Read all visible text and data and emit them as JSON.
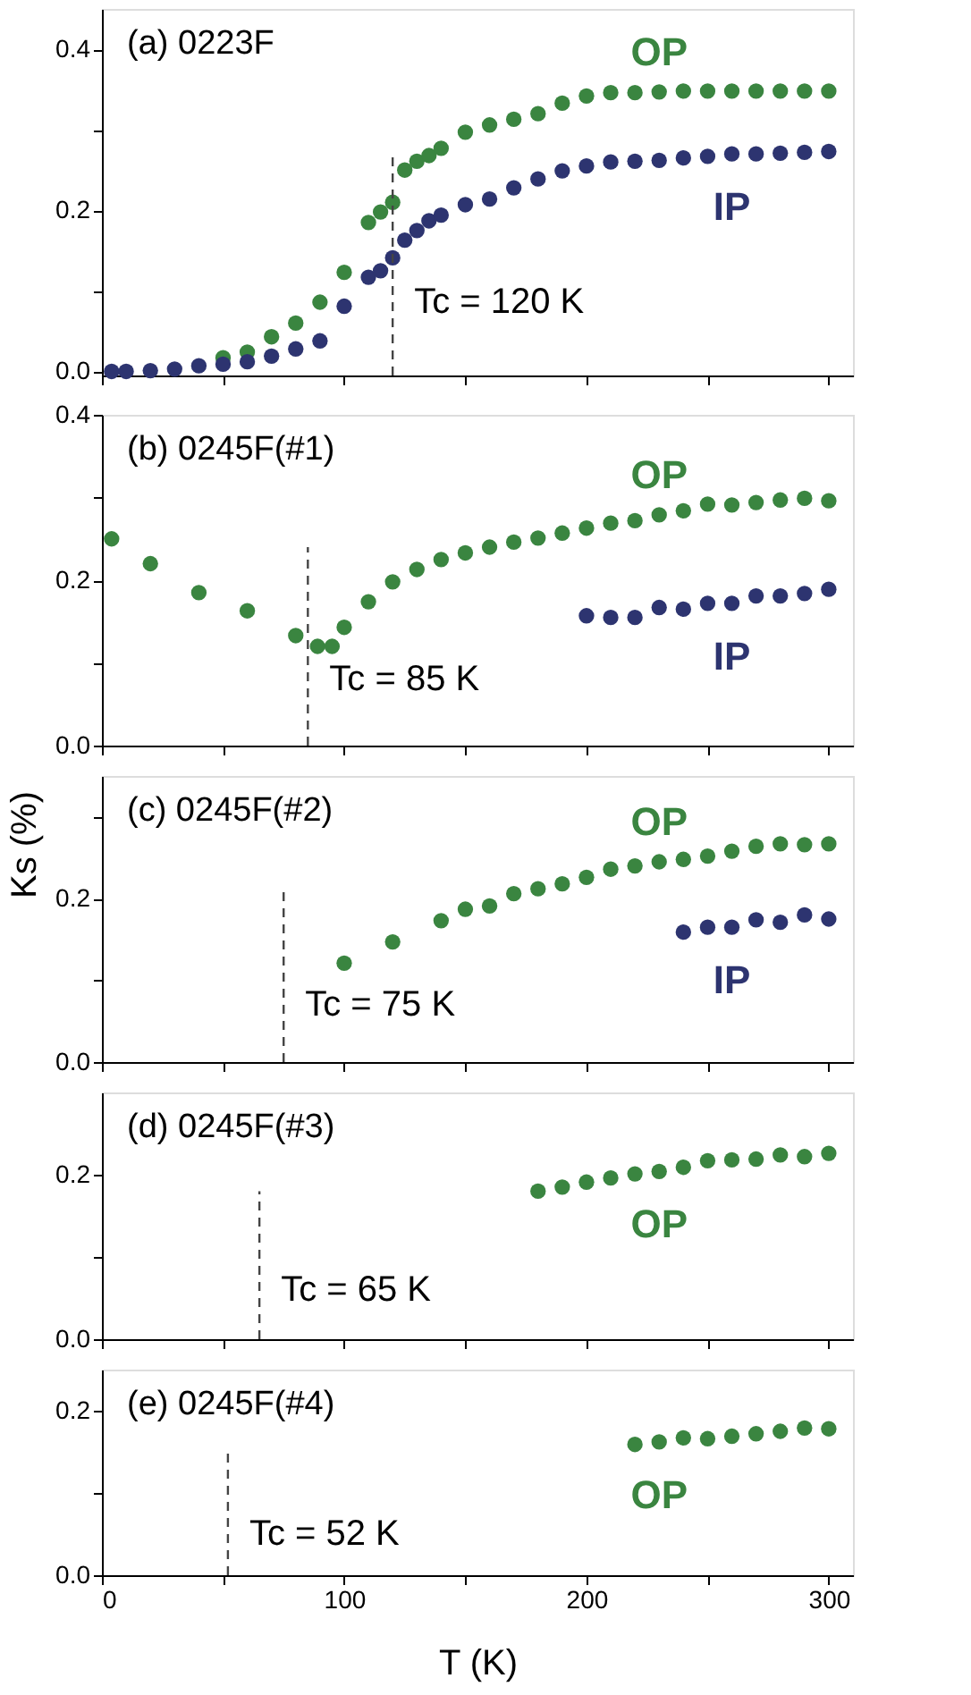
{
  "chart_data": [
    {
      "type": "scatter",
      "marker": "circle",
      "grid": false,
      "tick_labels": "y",
      "xlim": [
        0,
        310
      ],
      "ylim": [
        -0.005,
        0.45
      ],
      "xticks": [
        0,
        50,
        100,
        150,
        200,
        250,
        300
      ],
      "yticks": [
        {
          "value": 0,
          "label": "0.0"
        },
        {
          "value": 0.1,
          "label": null
        },
        {
          "value": 0.2,
          "label": "0.2"
        },
        {
          "value": 0.3,
          "label": null
        },
        {
          "value": 0.4,
          "label": "0.4"
        }
      ],
      "series": [
        {
          "name": "OP",
          "color": "#3a8540",
          "x": [
            50,
            60,
            70,
            80,
            90,
            100,
            110,
            115,
            120,
            125,
            130,
            135,
            140,
            150,
            160,
            170,
            180,
            190,
            200,
            210,
            220,
            230,
            240,
            250,
            260,
            270,
            280,
            290,
            300
          ],
          "values": [
            0.017,
            0.024,
            0.043,
            0.06,
            0.086,
            0.123,
            0.185,
            0.198,
            0.21,
            0.25,
            0.261,
            0.268,
            0.277,
            0.297,
            0.306,
            0.313,
            0.32,
            0.333,
            0.342,
            0.346,
            0.346,
            0.347,
            0.348,
            0.348,
            0.348,
            0.348,
            0.348,
            0.348,
            0.348
          ]
        },
        {
          "name": "IP",
          "color": "#2d3470",
          "x": [
            4,
            10,
            20,
            30,
            40,
            50,
            60,
            70,
            80,
            90,
            100,
            110,
            115,
            120,
            125,
            130,
            135,
            140,
            150,
            160,
            170,
            180,
            190,
            200,
            210,
            220,
            230,
            240,
            250,
            260,
            270,
            280,
            290,
            300
          ],
          "values": [
            0,
            0,
            0.001,
            0.003,
            0.007,
            0.009,
            0.012,
            0.019,
            0.028,
            0.038,
            0.081,
            0.117,
            0.125,
            0.141,
            0.163,
            0.175,
            0.187,
            0.194,
            0.207,
            0.214,
            0.228,
            0.239,
            0.249,
            0.255,
            0.26,
            0.261,
            0.262,
            0.265,
            0.267,
            0.27,
            0.27,
            0.271,
            0.272,
            0.273
          ]
        }
      ],
      "ref_lines": [
        {
          "axis": "x",
          "value": 120,
          "line_style": "dashed",
          "color": "#444444",
          "label": "Tc = 120 K"
        }
      ],
      "annotations": [
        "(a) 0223F"
      ]
    },
    {
      "type": "scatter",
      "marker": "circle",
      "grid": false,
      "tick_labels": "y",
      "xlim": [
        0,
        310
      ],
      "ylim": [
        0,
        0.4
      ],
      "xticks": [
        0,
        50,
        100,
        150,
        200,
        250,
        300
      ],
      "yticks": [
        {
          "value": 0,
          "label": "0.0"
        },
        {
          "value": 0.1,
          "label": null
        },
        {
          "value": 0.2,
          "label": "0.2"
        },
        {
          "value": 0.3,
          "label": null
        },
        {
          "value": 0.4,
          "label": "0.4"
        }
      ],
      "series": [
        {
          "name": "OP",
          "color": "#3a8540",
          "x": [
            4,
            20,
            40,
            60,
            80,
            89,
            95,
            100,
            110,
            120,
            130,
            140,
            150,
            160,
            170,
            180,
            190,
            200,
            210,
            220,
            230,
            240,
            250,
            260,
            270,
            280,
            290,
            300
          ],
          "values": [
            0.25,
            0.22,
            0.185,
            0.163,
            0.133,
            0.12,
            0.12,
            0.143,
            0.174,
            0.198,
            0.213,
            0.225,
            0.233,
            0.24,
            0.246,
            0.251,
            0.257,
            0.263,
            0.269,
            0.272,
            0.279,
            0.284,
            0.292,
            0.291,
            0.294,
            0.297,
            0.299,
            0.296
          ]
        },
        {
          "name": "IP",
          "color": "#2d3470",
          "x": [
            200,
            210,
            220,
            230,
            240,
            250,
            260,
            270,
            280,
            290,
            300
          ],
          "values": [
            0.157,
            0.155,
            0.155,
            0.167,
            0.165,
            0.172,
            0.172,
            0.181,
            0.181,
            0.184,
            0.189
          ]
        }
      ],
      "ref_lines": [
        {
          "axis": "x",
          "value": 85,
          "line_style": "dashed",
          "color": "#444444",
          "label": "Tc = 85 K"
        }
      ],
      "annotations": [
        "(b) 0245F(#1)"
      ]
    },
    {
      "type": "scatter",
      "marker": "circle",
      "grid": false,
      "tick_labels": "y",
      "xlim": [
        0,
        310
      ],
      "ylim": [
        0,
        0.35
      ],
      "ylabel": "Ks (%)",
      "xticks": [
        0,
        50,
        100,
        150,
        200,
        250,
        300
      ],
      "yticks": [
        {
          "value": 0,
          "label": "0.0"
        },
        {
          "value": 0.1,
          "label": null
        },
        {
          "value": 0.2,
          "label": "0.2"
        },
        {
          "value": 0.3,
          "label": null
        }
      ],
      "series": [
        {
          "name": "OP",
          "color": "#3a8540",
          "x": [
            100,
            120,
            140,
            150,
            160,
            170,
            180,
            190,
            200,
            210,
            220,
            230,
            240,
            250,
            260,
            270,
            280,
            290,
            300
          ],
          "values": [
            0.121,
            0.147,
            0.173,
            0.187,
            0.191,
            0.206,
            0.212,
            0.218,
            0.226,
            0.236,
            0.24,
            0.245,
            0.248,
            0.252,
            0.258,
            0.264,
            0.267,
            0.266,
            0.267
          ]
        },
        {
          "name": "IP",
          "color": "#2d3470",
          "x": [
            240,
            250,
            260,
            270,
            280,
            290,
            300
          ],
          "values": [
            0.159,
            0.165,
            0.165,
            0.174,
            0.171,
            0.18,
            0.175
          ]
        }
      ],
      "ref_lines": [
        {
          "axis": "x",
          "value": 75,
          "line_style": "dashed",
          "color": "#444444",
          "label": "Tc = 75 K"
        }
      ],
      "annotations": [
        "(c) 0245F(#2)"
      ]
    },
    {
      "type": "scatter",
      "marker": "circle",
      "grid": false,
      "tick_labels": "y",
      "xlim": [
        0,
        310
      ],
      "ylim": [
        0,
        0.3
      ],
      "xticks": [
        0,
        50,
        100,
        150,
        200,
        250,
        300
      ],
      "yticks": [
        {
          "value": 0,
          "label": "0.0"
        },
        {
          "value": 0.1,
          "label": null
        },
        {
          "value": 0.2,
          "label": "0.2"
        }
      ],
      "series": [
        {
          "name": "OP",
          "color": "#3a8540",
          "x": [
            180,
            190,
            200,
            210,
            220,
            230,
            240,
            250,
            260,
            270,
            280,
            290,
            300
          ],
          "values": [
            0.18,
            0.185,
            0.191,
            0.196,
            0.201,
            0.204,
            0.209,
            0.217,
            0.218,
            0.219,
            0.224,
            0.222,
            0.226
          ]
        }
      ],
      "ref_lines": [
        {
          "axis": "x",
          "value": 65,
          "line_style": "dashed",
          "color": "#444444",
          "label": "Tc = 65 K"
        }
      ],
      "annotations": [
        "(d) 0245F(#3)"
      ]
    },
    {
      "type": "scatter",
      "marker": "circle",
      "grid": false,
      "xlim": [
        0,
        310
      ],
      "ylim": [
        0,
        0.25
      ],
      "xlabel": "T (K)",
      "xticks": [
        {
          "value": 0,
          "label": "0"
        },
        {
          "value": 50,
          "label": null
        },
        {
          "value": 100,
          "label": "100"
        },
        {
          "value": 150,
          "label": null
        },
        {
          "value": 200,
          "label": "200"
        },
        {
          "value": 250,
          "label": null
        },
        {
          "value": 300,
          "label": "300"
        }
      ],
      "yticks": [
        {
          "value": 0,
          "label": "0.0"
        },
        {
          "value": 0.1,
          "label": null
        },
        {
          "value": 0.2,
          "label": "0.2"
        }
      ],
      "series": [
        {
          "name": "OP",
          "color": "#3a8540",
          "x": [
            220,
            230,
            240,
            250,
            260,
            270,
            280,
            290,
            300
          ],
          "values": [
            0.159,
            0.162,
            0.167,
            0.166,
            0.169,
            0.172,
            0.175,
            0.179,
            0.178
          ]
        }
      ],
      "ref_lines": [
        {
          "axis": "x",
          "value": 52,
          "line_style": "dashed",
          "color": "#444444",
          "label": "Tc = 52 K"
        }
      ],
      "annotations": [
        "(e) 0245F(#4)"
      ]
    }
  ]
}
